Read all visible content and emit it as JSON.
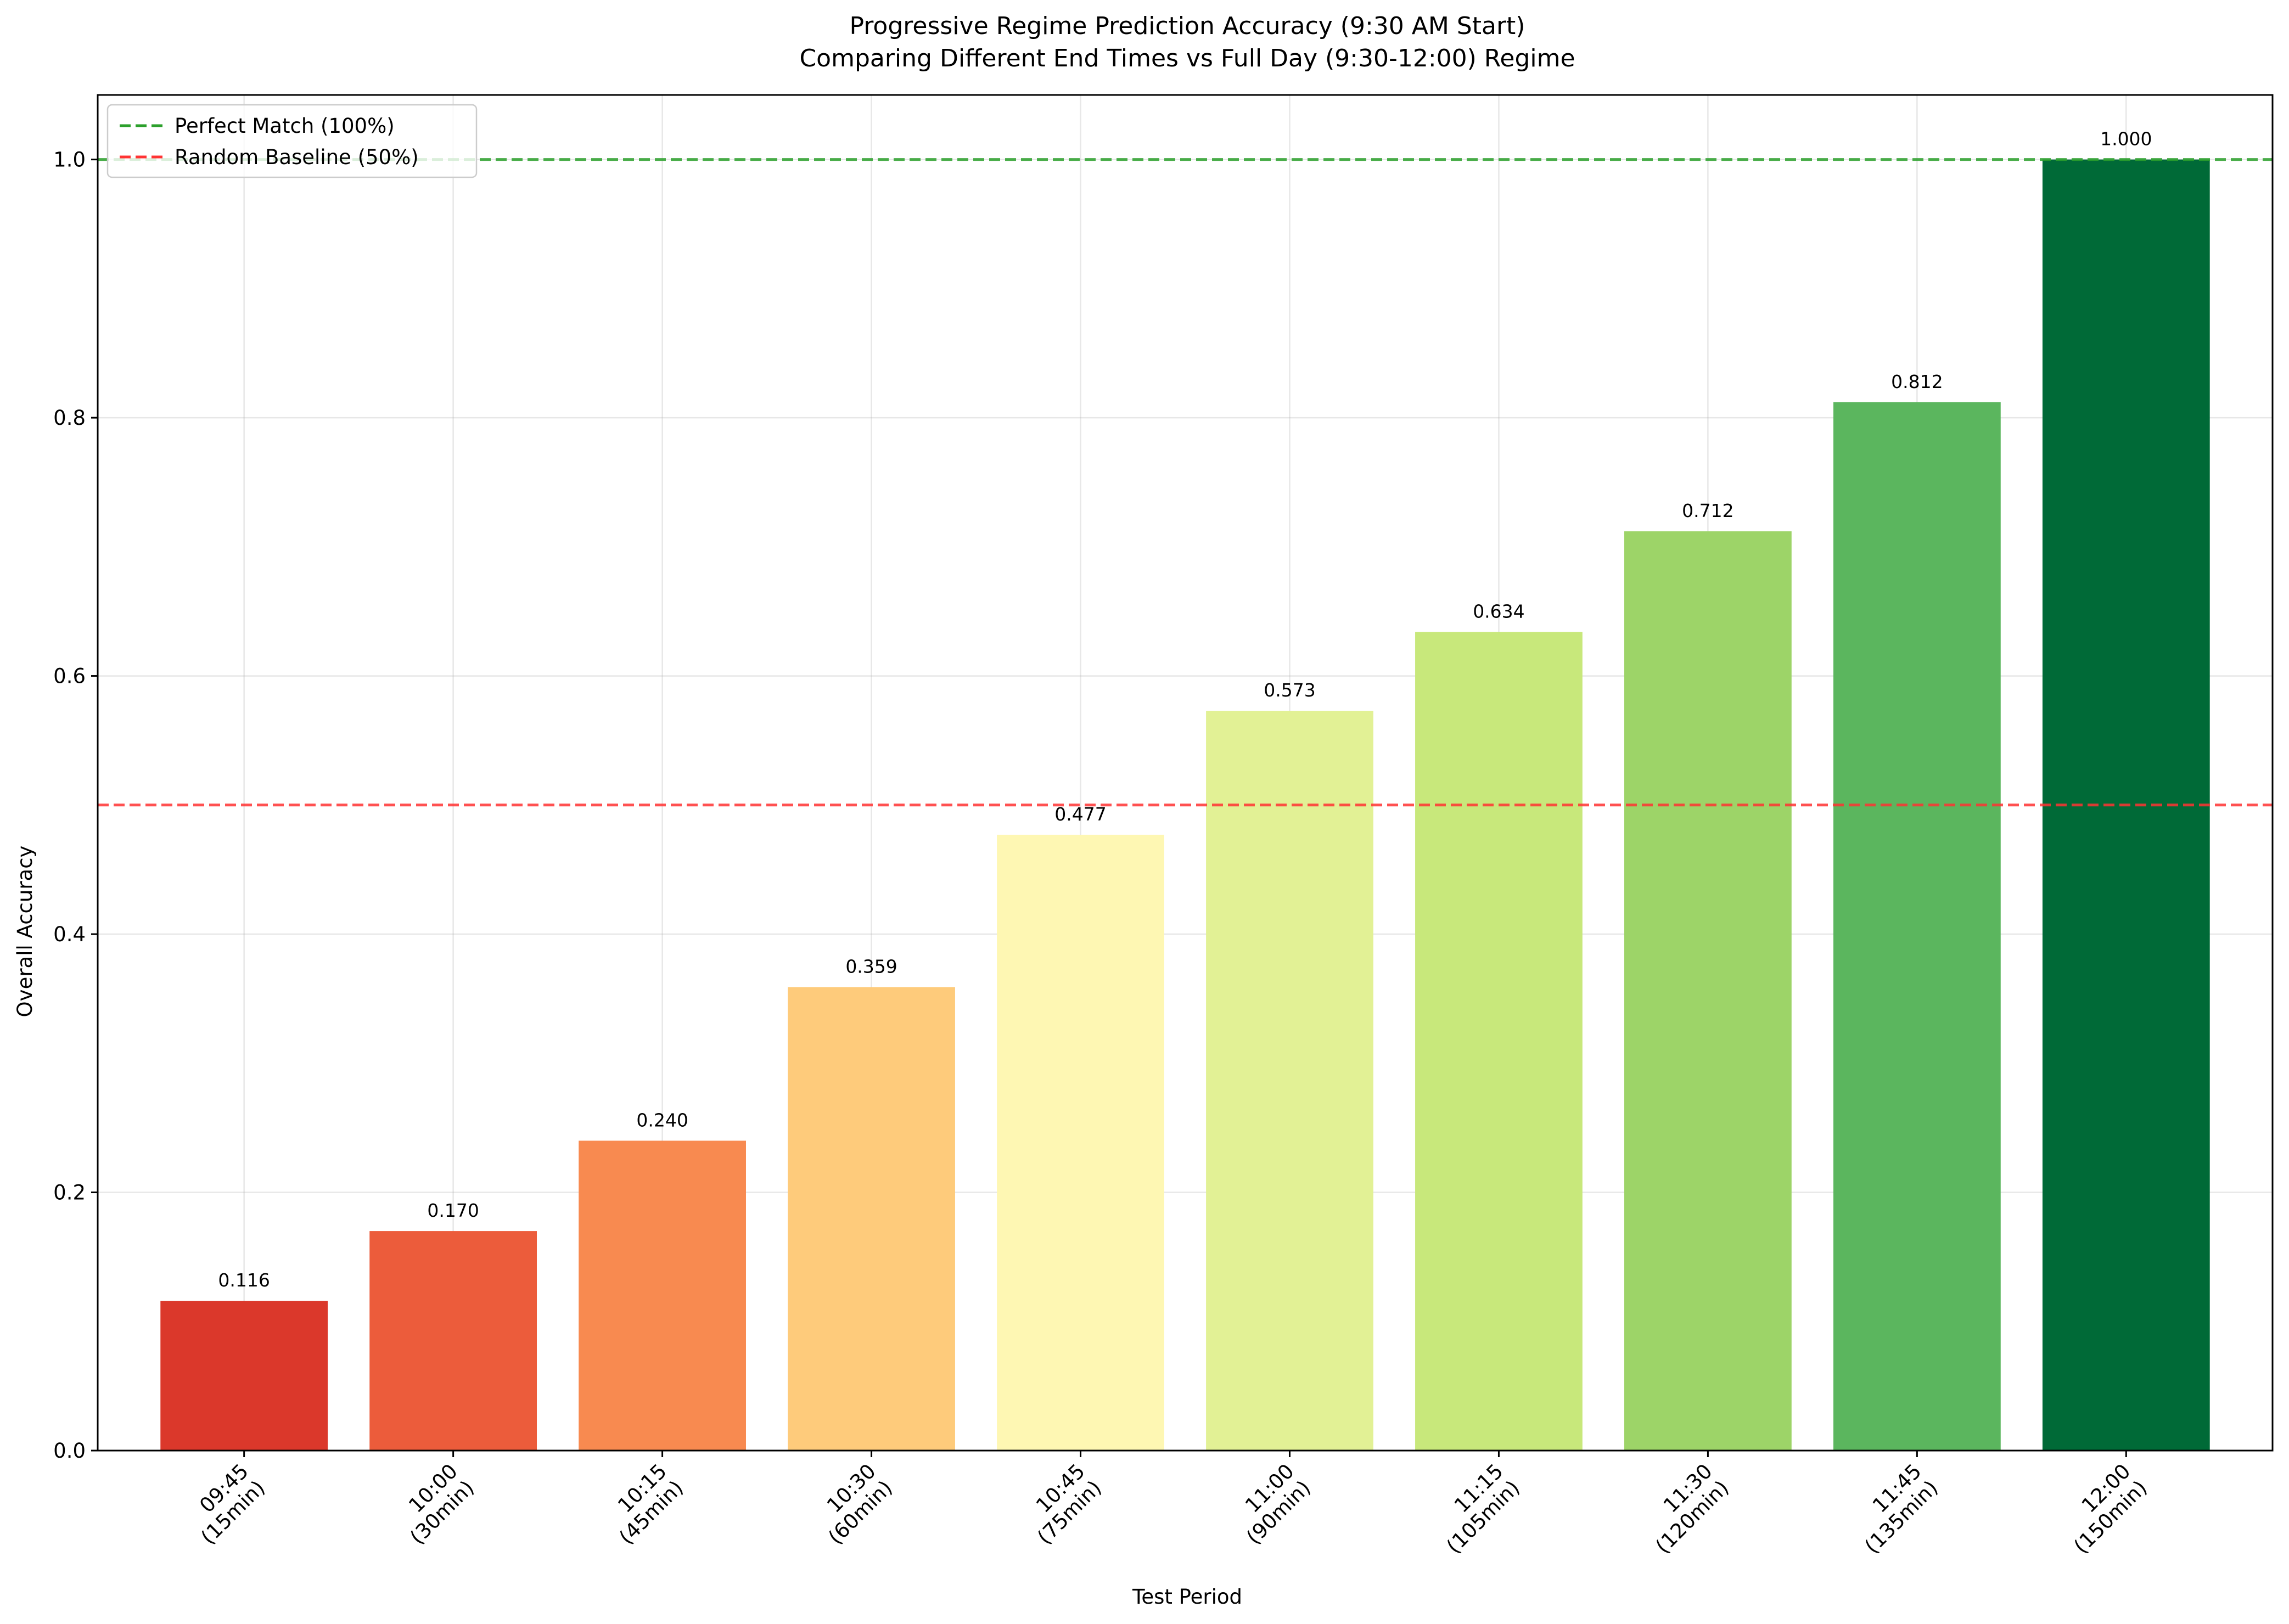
{
  "chart_data": {
    "type": "bar",
    "title": "Progressive Regime Prediction Accuracy (9:30 AM Start)",
    "subtitle": "Comparing Different End Times vs Full Day (9:30-12:00) Regime",
    "xlabel": "Test Period",
    "ylabel": "Overall Accuracy",
    "categories": [
      [
        "09:45",
        "(15min)"
      ],
      [
        "10:00",
        "(30min)"
      ],
      [
        "10:15",
        "(45min)"
      ],
      [
        "10:30",
        "(60min)"
      ],
      [
        "10:45",
        "(75min)"
      ],
      [
        "11:00",
        "(90min)"
      ],
      [
        "11:15",
        "(105min)"
      ],
      [
        "11:30",
        "(120min)"
      ],
      [
        "11:45",
        "(135min)"
      ],
      [
        "12:00",
        "(150min)"
      ]
    ],
    "values": [
      0.116,
      0.17,
      0.24,
      0.359,
      0.477,
      0.573,
      0.634,
      0.712,
      0.812,
      1.0
    ],
    "value_labels": [
      "0.116",
      "0.170",
      "0.240",
      "0.359",
      "0.477",
      "0.573",
      "0.634",
      "0.712",
      "0.812",
      "1.000"
    ],
    "bar_colors": [
      "#db382b",
      "#ec5c3b",
      "#f88a50",
      "#fecb7b",
      "#fef7b3",
      "#e2f195",
      "#c8e87b",
      "#9dd468",
      "#5bb65e",
      "#006a37"
    ],
    "ylim": [
      0,
      1.05
    ],
    "yticks": [
      0.0,
      0.2,
      0.4,
      0.6,
      0.8,
      1.0
    ],
    "ytick_labels": [
      "0.0",
      "0.2",
      "0.4",
      "0.6",
      "0.8",
      "1.0"
    ],
    "grid": true,
    "reference_lines": [
      {
        "name": "Perfect Match (100%)",
        "y": 1.0,
        "color": "#2ca02c",
        "style": "dashed"
      },
      {
        "name": "Random Baseline (50%)",
        "y": 0.5,
        "color": "#ff3333",
        "style": "dashed"
      }
    ],
    "legend_position": "top-left"
  }
}
